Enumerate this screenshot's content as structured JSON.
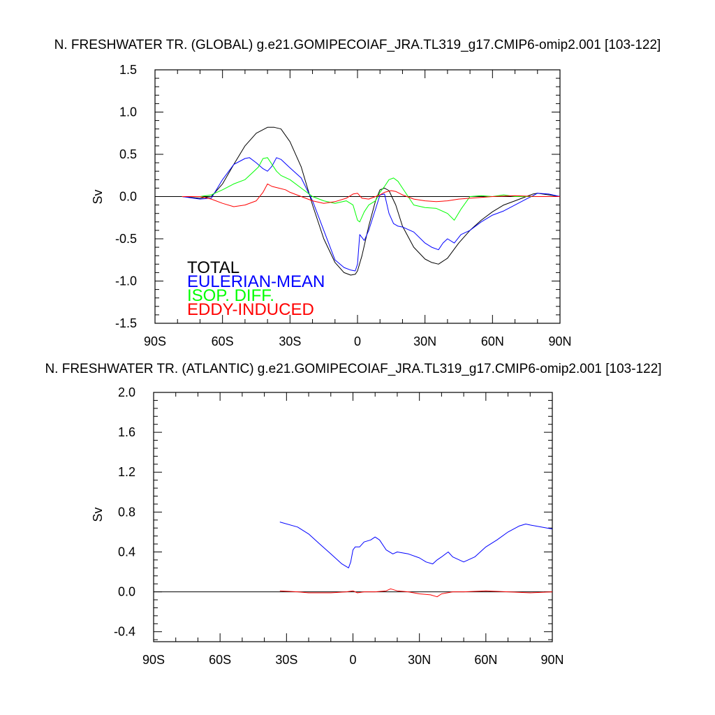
{
  "chart_data": [
    {
      "type": "line",
      "title": "N. FRESHWATER TR. (GLOBAL) g.e21.GOMIPECOIAF_JRA.TL319_g17.CMIP6-omip2.001 [103-122]",
      "ylabel": "Sv",
      "xlabel": "",
      "xlim": [
        -90,
        90
      ],
      "ylim": [
        -1.5,
        1.5
      ],
      "x_ticks": [
        -90,
        -60,
        -30,
        0,
        30,
        60,
        90
      ],
      "x_tick_labels": [
        "90S",
        "60S",
        "30S",
        "0",
        "30N",
        "60N",
        "90N"
      ],
      "y_ticks": [
        -1.5,
        -1.0,
        -0.5,
        0.0,
        0.5,
        1.0,
        1.5
      ],
      "y_tick_labels": [
        "-1.5",
        "-1.0",
        "-0.5",
        "0.0",
        "0.5",
        "1.0",
        "1.5"
      ],
      "zero_line": true,
      "grid": false,
      "legend_placement": "bottom-left",
      "series": [
        {
          "name": "TOTAL",
          "color": "#000000",
          "x": [
            -78,
            -70,
            -65,
            -60,
            -55,
            -50,
            -45,
            -40,
            -37,
            -34,
            -30,
            -25,
            -20,
            -15,
            -10,
            -6,
            -3,
            -1,
            0,
            2,
            5,
            8,
            10,
            12,
            14,
            17,
            20,
            25,
            30,
            33,
            36,
            40,
            45,
            50,
            55,
            60,
            65,
            70,
            75,
            78,
            80,
            85,
            90
          ],
          "y": [
            0,
            -0.02,
            0,
            0.15,
            0.38,
            0.6,
            0.75,
            0.82,
            0.82,
            0.8,
            0.65,
            0.35,
            -0.1,
            -0.5,
            -0.78,
            -0.9,
            -0.93,
            -0.92,
            -0.88,
            -0.7,
            -0.35,
            -0.05,
            0.08,
            0.1,
            0.07,
            -0.1,
            -0.35,
            -0.6,
            -0.74,
            -0.78,
            -0.8,
            -0.73,
            -0.55,
            -0.4,
            -0.28,
            -0.18,
            -0.1,
            -0.05,
            0,
            0.03,
            0.04,
            0.02,
            0
          ]
        },
        {
          "name": "EULERIAN-MEAN",
          "color": "#0000ff",
          "x": [
            -78,
            -70,
            -65,
            -60,
            -55,
            -50,
            -48,
            -45,
            -42,
            -40,
            -38,
            -36,
            -34,
            -30,
            -25,
            -20,
            -15,
            -10,
            -6,
            -3,
            -1,
            0,
            1,
            3,
            5,
            8,
            10,
            12,
            14,
            16,
            18,
            20,
            25,
            30,
            33,
            36,
            38,
            40,
            43,
            46,
            50,
            55,
            60,
            65,
            70,
            75,
            78,
            80,
            85,
            90
          ],
          "y": [
            0,
            -0.03,
            -0.02,
            0.2,
            0.38,
            0.45,
            0.46,
            0.4,
            0.33,
            0.3,
            0.36,
            0.46,
            0.44,
            0.34,
            0.22,
            -0.05,
            -0.4,
            -0.75,
            -0.84,
            -0.87,
            -0.88,
            -0.8,
            -0.45,
            -0.52,
            -0.4,
            -0.15,
            0.02,
            0.03,
            -0.2,
            -0.32,
            -0.35,
            -0.36,
            -0.42,
            -0.55,
            -0.6,
            -0.63,
            -0.55,
            -0.5,
            -0.55,
            -0.45,
            -0.4,
            -0.3,
            -0.22,
            -0.17,
            -0.1,
            -0.03,
            0.01,
            0.04,
            0.03,
            0
          ]
        },
        {
          "name": "ISOP. DIFF.",
          "color": "#00ff00",
          "x": [
            -78,
            -70,
            -65,
            -60,
            -55,
            -50,
            -46,
            -44,
            -42,
            -40,
            -38,
            -36,
            -34,
            -30,
            -25,
            -20,
            -15,
            -10,
            -5,
            -2,
            0,
            1,
            3,
            5,
            8,
            10,
            12,
            14,
            16,
            18,
            20,
            25,
            30,
            35,
            40,
            43,
            46,
            50,
            55,
            60,
            65,
            70,
            75,
            80,
            90
          ],
          "y": [
            0,
            0,
            0.02,
            0.08,
            0.15,
            0.2,
            0.3,
            0.35,
            0.45,
            0.46,
            0.38,
            0.3,
            0.25,
            0.2,
            0.1,
            0.0,
            -0.05,
            -0.08,
            -0.05,
            -0.1,
            -0.28,
            -0.3,
            -0.18,
            -0.1,
            -0.05,
            0.05,
            0.12,
            0.2,
            0.22,
            0.18,
            0.1,
            -0.1,
            -0.13,
            -0.14,
            -0.2,
            -0.28,
            -0.15,
            0.0,
            0.01,
            0.0,
            0.02,
            0.0,
            0.0,
            0.0,
            0
          ]
        },
        {
          "name": "EDDY-INDUCED",
          "color": "#ff0000",
          "x": [
            -78,
            -70,
            -65,
            -60,
            -55,
            -50,
            -45,
            -42,
            -40,
            -38,
            -35,
            -32,
            -30,
            -25,
            -20,
            -15,
            -10,
            -5,
            -2,
            0,
            2,
            5,
            8,
            10,
            12,
            15,
            17,
            20,
            25,
            30,
            35,
            40,
            45,
            50,
            55,
            60,
            70,
            80,
            90
          ],
          "y": [
            0,
            0,
            -0.03,
            -0.08,
            -0.12,
            -0.1,
            -0.05,
            0.05,
            0.15,
            0.12,
            0.1,
            0.08,
            0.05,
            0.0,
            -0.05,
            -0.08,
            -0.06,
            -0.02,
            0.03,
            0.04,
            -0.02,
            -0.03,
            0.0,
            0.02,
            0.05,
            0.07,
            0.06,
            0.02,
            -0.03,
            -0.05,
            -0.06,
            -0.05,
            -0.03,
            -0.02,
            -0.01,
            0.0,
            0.01,
            0.0,
            0
          ]
        }
      ],
      "legend": [
        {
          "label": "TOTAL",
          "color": "#000000"
        },
        {
          "label": "EULERIAN-MEAN",
          "color": "#0000ff"
        },
        {
          "label": "ISOP. DIFF.",
          "color": "#00ff00"
        },
        {
          "label": "EDDY-INDUCED",
          "color": "#ff0000"
        }
      ]
    },
    {
      "type": "line",
      "title": "N. FRESHWATER TR. (ATLANTIC) g.e21.GOMIPECOIAF_JRA.TL319_g17.CMIP6-omip2.001 [103-122]",
      "ylabel": "Sv",
      "xlabel": "",
      "xlim": [
        -90,
        90
      ],
      "ylim": [
        -0.5,
        2.0
      ],
      "x_ticks": [
        -90,
        -60,
        -30,
        0,
        30,
        60,
        90
      ],
      "x_tick_labels": [
        "90S",
        "60S",
        "30S",
        "0",
        "30N",
        "60N",
        "90N"
      ],
      "y_ticks": [
        -0.4,
        0.0,
        0.4,
        0.8,
        1.2,
        1.6,
        2.0
      ],
      "y_tick_labels": [
        "-0.4",
        "0.0",
        "0.4",
        "0.8",
        "1.2",
        "1.6",
        "2.0"
      ],
      "zero_line": true,
      "grid": false,
      "series": [
        {
          "color": "#0000ff",
          "x": [
            -33,
            -25,
            -20,
            -15,
            -10,
            -5,
            -2,
            -1,
            0,
            1,
            3,
            5,
            8,
            10,
            12,
            15,
            18,
            20,
            25,
            30,
            33,
            36,
            38,
            40,
            43,
            45,
            48,
            50,
            55,
            60,
            65,
            70,
            75,
            78,
            80,
            85,
            90
          ],
          "y": [
            0.7,
            0.65,
            0.58,
            0.48,
            0.38,
            0.28,
            0.24,
            0.3,
            0.42,
            0.45,
            0.45,
            0.5,
            0.52,
            0.55,
            0.52,
            0.42,
            0.38,
            0.4,
            0.38,
            0.34,
            0.3,
            0.28,
            0.32,
            0.35,
            0.4,
            0.35,
            0.32,
            0.3,
            0.35,
            0.45,
            0.52,
            0.6,
            0.66,
            0.68,
            0.67,
            0.65,
            0.63
          ]
        },
        {
          "color": "#ff0000",
          "x": [
            -33,
            -25,
            -20,
            -10,
            -3,
            0,
            2,
            5,
            10,
            15,
            17,
            20,
            25,
            30,
            35,
            38,
            40,
            45,
            50,
            60,
            70,
            80,
            90
          ],
          "y": [
            0.01,
            0.0,
            -0.01,
            -0.01,
            0.0,
            0.01,
            -0.01,
            0.0,
            0.0,
            0.01,
            0.03,
            0.01,
            0.0,
            -0.02,
            -0.03,
            -0.05,
            -0.02,
            0.0,
            0.0,
            0.01,
            0.0,
            -0.01,
            0
          ]
        }
      ]
    }
  ]
}
